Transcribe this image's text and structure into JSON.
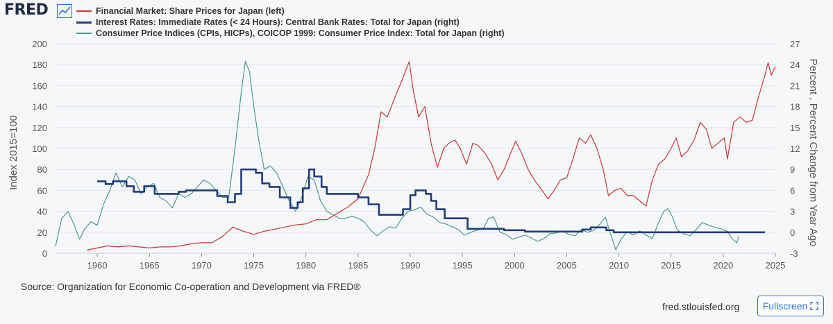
{
  "header": {
    "logo_text": "FRED",
    "logo_icon": "line-chart-icon"
  },
  "footer": {
    "source": "Source: Organization for Economic Co-operation and Development via FRED®",
    "link": "fred.stlouisfed.org",
    "fullscreen_label": "Fullscreen",
    "fullscreen_icon": "expand-icon"
  },
  "colors": {
    "share_prices": "#cc3333",
    "interest_rates": "#1f3c7a",
    "cpi": "#4a9a8c",
    "grid": "#e1e5ea",
    "accent": "#2a6fdb"
  },
  "chart_data": {
    "type": "line",
    "left_axis": {
      "label": "Index 2015=100",
      "range": [
        0,
        200
      ],
      "ticks": [
        0,
        20,
        40,
        60,
        80,
        100,
        120,
        140,
        160,
        180,
        200
      ]
    },
    "right_axis": {
      "label": "Percent , Percent Change from Year Ago",
      "range": [
        -3,
        27
      ],
      "ticks": [
        -3,
        0,
        3,
        6,
        9,
        12,
        15,
        18,
        21,
        24,
        27
      ]
    },
    "x_axis": {
      "range": [
        1956,
        2025
      ],
      "ticks": [
        1960,
        1965,
        1970,
        1975,
        1980,
        1985,
        1990,
        1995,
        2000,
        2005,
        2010,
        2015,
        2020,
        2025
      ]
    },
    "grid": true,
    "legend_position": "top-left",
    "series": [
      {
        "name": "Financial Market: Share Prices for Japan (left)",
        "axis": "left",
        "color": "#cc3333",
        "points": [
          [
            1959.0,
            3
          ],
          [
            1960.0,
            5
          ],
          [
            1961.0,
            7
          ],
          [
            1962.0,
            6
          ],
          [
            1963.0,
            7
          ],
          [
            1964.0,
            6
          ],
          [
            1965.0,
            5
          ],
          [
            1966.0,
            6
          ],
          [
            1967.0,
            6
          ],
          [
            1968.0,
            7
          ],
          [
            1969.0,
            9
          ],
          [
            1970.0,
            10
          ],
          [
            1971.0,
            10
          ],
          [
            1972.0,
            16
          ],
          [
            1973.0,
            25
          ],
          [
            1974.0,
            21
          ],
          [
            1975.0,
            18
          ],
          [
            1976.0,
            21
          ],
          [
            1977.0,
            23
          ],
          [
            1978.0,
            25
          ],
          [
            1979.0,
            27
          ],
          [
            1980.0,
            28
          ],
          [
            1981.0,
            32
          ],
          [
            1982.0,
            32
          ],
          [
            1983.0,
            38
          ],
          [
            1984.0,
            44
          ],
          [
            1985.0,
            52
          ],
          [
            1986.0,
            75
          ],
          [
            1986.6,
            100
          ],
          [
            1987.2,
            135
          ],
          [
            1987.8,
            130
          ],
          [
            1988.5,
            148
          ],
          [
            1989.2,
            165
          ],
          [
            1989.9,
            183
          ],
          [
            1990.3,
            155
          ],
          [
            1990.8,
            130
          ],
          [
            1991.4,
            140
          ],
          [
            1992.0,
            105
          ],
          [
            1992.6,
            82
          ],
          [
            1993.2,
            100
          ],
          [
            1993.7,
            105
          ],
          [
            1994.3,
            108
          ],
          [
            1994.8,
            100
          ],
          [
            1995.4,
            85
          ],
          [
            1996.0,
            105
          ],
          [
            1996.5,
            103
          ],
          [
            1997.2,
            95
          ],
          [
            1997.8,
            85
          ],
          [
            1998.4,
            70
          ],
          [
            1999.0,
            80
          ],
          [
            1999.6,
            95
          ],
          [
            2000.1,
            107
          ],
          [
            2000.7,
            95
          ],
          [
            2001.3,
            80
          ],
          [
            2001.9,
            70
          ],
          [
            2002.5,
            62
          ],
          [
            2003.2,
            52
          ],
          [
            2003.8,
            60
          ],
          [
            2004.4,
            70
          ],
          [
            2005.0,
            72
          ],
          [
            2005.6,
            90
          ],
          [
            2006.2,
            110
          ],
          [
            2006.8,
            105
          ],
          [
            2007.3,
            113
          ],
          [
            2007.9,
            100
          ],
          [
            2008.5,
            80
          ],
          [
            2009.0,
            55
          ],
          [
            2009.6,
            60
          ],
          [
            2010.2,
            62
          ],
          [
            2010.8,
            55
          ],
          [
            2011.4,
            55
          ],
          [
            2012.0,
            50
          ],
          [
            2012.6,
            45
          ],
          [
            2013.2,
            70
          ],
          [
            2013.8,
            85
          ],
          [
            2014.4,
            90
          ],
          [
            2015.0,
            100
          ],
          [
            2015.5,
            110
          ],
          [
            2016.0,
            92
          ],
          [
            2016.6,
            98
          ],
          [
            2017.2,
            108
          ],
          [
            2017.8,
            125
          ],
          [
            2018.4,
            118
          ],
          [
            2018.9,
            100
          ],
          [
            2019.5,
            105
          ],
          [
            2020.1,
            110
          ],
          [
            2020.4,
            90
          ],
          [
            2021.0,
            125
          ],
          [
            2021.6,
            130
          ],
          [
            2022.2,
            125
          ],
          [
            2022.8,
            127
          ],
          [
            2023.4,
            150
          ],
          [
            2024.0,
            170
          ],
          [
            2024.3,
            182
          ],
          [
            2024.6,
            170
          ],
          [
            2025.0,
            178
          ]
        ]
      },
      {
        "name": "Interest Rates: Immediate Rates (< 24 Hours): Central Bank Rates: Total for Japan (right)",
        "axis": "right",
        "color": "#1f3c7a",
        "points": [
          [
            1960.0,
            7.3
          ],
          [
            1960.8,
            6.9
          ],
          [
            1961.5,
            7.3
          ],
          [
            1962.8,
            6.6
          ],
          [
            1963.5,
            5.8
          ],
          [
            1964.5,
            6.6
          ],
          [
            1965.5,
            5.5
          ],
          [
            1967.8,
            5.8
          ],
          [
            1968.5,
            6.0
          ],
          [
            1970.5,
            6.0
          ],
          [
            1971.5,
            5.2
          ],
          [
            1972.5,
            4.3
          ],
          [
            1973.2,
            5.5
          ],
          [
            1973.8,
            9.0
          ],
          [
            1975.2,
            8.5
          ],
          [
            1975.8,
            7.0
          ],
          [
            1976.5,
            6.5
          ],
          [
            1977.5,
            5.0
          ],
          [
            1978.5,
            3.5
          ],
          [
            1979.2,
            4.3
          ],
          [
            1979.7,
            6.3
          ],
          [
            1980.3,
            9.0
          ],
          [
            1980.8,
            8.0
          ],
          [
            1981.5,
            6.5
          ],
          [
            1982.0,
            5.5
          ],
          [
            1985.0,
            5.0
          ],
          [
            1986.0,
            4.0
          ],
          [
            1987.0,
            2.5
          ],
          [
            1989.3,
            3.3
          ],
          [
            1990.0,
            5.3
          ],
          [
            1990.5,
            6.0
          ],
          [
            1991.5,
            5.5
          ],
          [
            1992.0,
            4.5
          ],
          [
            1992.5,
            3.3
          ],
          [
            1993.3,
            2.0
          ],
          [
            1995.5,
            0.5
          ],
          [
            1999.0,
            0.3
          ],
          [
            2001.0,
            0.1
          ],
          [
            2006.5,
            0.4
          ],
          [
            2007.3,
            0.7
          ],
          [
            2008.8,
            0.3
          ],
          [
            2009.5,
            0.0
          ],
          [
            2024.0,
            0.0
          ]
        ]
      },
      {
        "name": "Consumer Price Indices (CPIs, HICPs), COICOP 1999: Consumer Price Index: Total for Japan (right)",
        "axis": "right",
        "color": "#4a9a8c",
        "points": [
          [
            1956.0,
            -2.0
          ],
          [
            1956.6,
            2.0
          ],
          [
            1957.2,
            3.0
          ],
          [
            1957.8,
            1.0
          ],
          [
            1958.3,
            -1.0
          ],
          [
            1958.8,
            0.5
          ],
          [
            1959.4,
            1.5
          ],
          [
            1960.0,
            1.0
          ],
          [
            1960.6,
            4.0
          ],
          [
            1961.2,
            6.0
          ],
          [
            1961.8,
            8.5
          ],
          [
            1962.4,
            6.5
          ],
          [
            1963.0,
            8.0
          ],
          [
            1963.6,
            7.5
          ],
          [
            1964.2,
            5.5
          ],
          [
            1964.8,
            6.5
          ],
          [
            1965.4,
            7.0
          ],
          [
            1966.0,
            5.0
          ],
          [
            1966.6,
            4.5
          ],
          [
            1967.2,
            3.5
          ],
          [
            1967.8,
            5.5
          ],
          [
            1968.4,
            5.0
          ],
          [
            1969.0,
            5.5
          ],
          [
            1969.6,
            6.5
          ],
          [
            1970.2,
            7.5
          ],
          [
            1970.8,
            7.0
          ],
          [
            1971.4,
            6.0
          ],
          [
            1972.0,
            5.0
          ],
          [
            1972.6,
            5.0
          ],
          [
            1973.2,
            12.0
          ],
          [
            1973.8,
            20.0
          ],
          [
            1974.2,
            24.5
          ],
          [
            1974.6,
            23.0
          ],
          [
            1975.0,
            18.0
          ],
          [
            1975.5,
            13.0
          ],
          [
            1976.0,
            9.0
          ],
          [
            1976.6,
            9.5
          ],
          [
            1977.2,
            8.5
          ],
          [
            1977.8,
            6.5
          ],
          [
            1978.4,
            4.5
          ],
          [
            1979.0,
            3.0
          ],
          [
            1979.6,
            5.0
          ],
          [
            1980.2,
            8.0
          ],
          [
            1980.8,
            7.5
          ],
          [
            1981.4,
            4.5
          ],
          [
            1982.0,
            3.0
          ],
          [
            1982.6,
            2.5
          ],
          [
            1983.2,
            2.0
          ],
          [
            1983.8,
            2.0
          ],
          [
            1984.4,
            2.3
          ],
          [
            1985.0,
            2.0
          ],
          [
            1985.6,
            1.5
          ],
          [
            1986.2,
            0.3
          ],
          [
            1986.8,
            -0.5
          ],
          [
            1987.4,
            0.2
          ],
          [
            1988.0,
            0.8
          ],
          [
            1988.6,
            0.6
          ],
          [
            1989.2,
            2.0
          ],
          [
            1989.8,
            3.0
          ],
          [
            1990.4,
            3.2
          ],
          [
            1991.0,
            3.6
          ],
          [
            1991.6,
            2.6
          ],
          [
            1992.2,
            2.2
          ],
          [
            1992.8,
            1.4
          ],
          [
            1993.4,
            1.2
          ],
          [
            1994.0,
            0.8
          ],
          [
            1994.6,
            0.4
          ],
          [
            1995.2,
            -0.4
          ],
          [
            1995.8,
            0.0
          ],
          [
            1996.4,
            0.3
          ],
          [
            1997.0,
            0.5
          ],
          [
            1997.5,
            2.0
          ],
          [
            1998.0,
            2.2
          ],
          [
            1998.6,
            0.0
          ],
          [
            1999.2,
            -0.3
          ],
          [
            1999.8,
            -1.0
          ],
          [
            2000.4,
            -0.7
          ],
          [
            2001.0,
            -0.4
          ],
          [
            2001.6,
            -0.8
          ],
          [
            2002.2,
            -1.3
          ],
          [
            2002.8,
            -0.9
          ],
          [
            2003.4,
            -0.2
          ],
          [
            2004.0,
            -0.1
          ],
          [
            2004.6,
            0.2
          ],
          [
            2005.2,
            -0.3
          ],
          [
            2005.8,
            -0.5
          ],
          [
            2006.4,
            0.4
          ],
          [
            2007.0,
            0.0
          ],
          [
            2007.6,
            0.3
          ],
          [
            2008.2,
            1.2
          ],
          [
            2008.7,
            2.2
          ],
          [
            2009.2,
            -0.2
          ],
          [
            2009.7,
            -2.5
          ],
          [
            2010.2,
            -1.0
          ],
          [
            2010.8,
            0.1
          ],
          [
            2011.4,
            -0.4
          ],
          [
            2012.0,
            0.2
          ],
          [
            2012.6,
            -0.4
          ],
          [
            2013.2,
            -0.9
          ],
          [
            2013.8,
            1.4
          ],
          [
            2014.3,
            3.0
          ],
          [
            2014.7,
            3.4
          ],
          [
            2015.1,
            2.3
          ],
          [
            2015.6,
            0.3
          ],
          [
            2016.2,
            -0.2
          ],
          [
            2016.8,
            -0.5
          ],
          [
            2017.4,
            0.4
          ],
          [
            2018.0,
            1.4
          ],
          [
            2018.6,
            1.0
          ],
          [
            2019.2,
            0.7
          ],
          [
            2019.8,
            0.5
          ],
          [
            2020.4,
            0.1
          ],
          [
            2020.9,
            -1.0
          ],
          [
            2021.3,
            -1.5
          ],
          [
            2021.5,
            -0.6
          ]
        ]
      }
    ]
  }
}
